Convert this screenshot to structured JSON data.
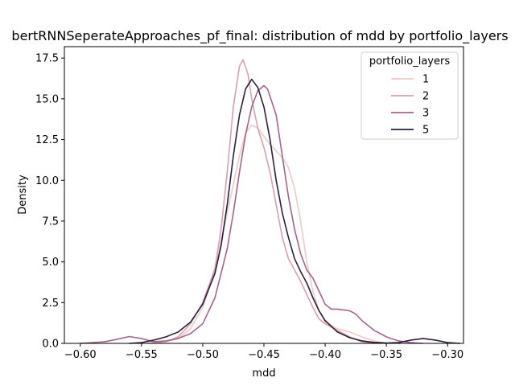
{
  "chart_data": {
    "type": "line",
    "title": "bertRNNSeperateApproaches_pf_final: distribution of mdd by portfolio_layers",
    "xlabel": "mdd",
    "ylabel": "Density",
    "xlim": [
      -0.613,
      -0.287
    ],
    "ylim": [
      0,
      18.2
    ],
    "xticks": [
      -0.6,
      -0.55,
      -0.5,
      -0.45,
      -0.4,
      -0.35,
      -0.3
    ],
    "xtick_labels": [
      "−0.60",
      "−0.55",
      "−0.50",
      "−0.45",
      "−0.40",
      "−0.35",
      "−0.30"
    ],
    "yticks": [
      0.0,
      2.5,
      5.0,
      7.5,
      10.0,
      12.5,
      15.0,
      17.5
    ],
    "ytick_labels": [
      "0.0",
      "2.5",
      "5.0",
      "7.5",
      "10.0",
      "12.5",
      "15.0",
      "17.5"
    ],
    "grid": false,
    "legend": {
      "title": "portfolio_layers",
      "placement": "top-right"
    },
    "series": [
      {
        "name": "1",
        "color": "#efcac4",
        "points": [
          [
            -0.545,
            0.0
          ],
          [
            -0.53,
            0.1
          ],
          [
            -0.52,
            0.3
          ],
          [
            -0.51,
            0.9
          ],
          [
            -0.5,
            2.2
          ],
          [
            -0.49,
            4.5
          ],
          [
            -0.48,
            8.0
          ],
          [
            -0.47,
            11.5
          ],
          [
            -0.465,
            12.9
          ],
          [
            -0.46,
            13.4
          ],
          [
            -0.455,
            13.2
          ],
          [
            -0.45,
            12.7
          ],
          [
            -0.445,
            12.2
          ],
          [
            -0.44,
            11.8
          ],
          [
            -0.435,
            11.4
          ],
          [
            -0.43,
            10.8
          ],
          [
            -0.425,
            9.5
          ],
          [
            -0.42,
            7.5
          ],
          [
            -0.415,
            5.0
          ],
          [
            -0.41,
            3.2
          ],
          [
            -0.405,
            2.0
          ],
          [
            -0.4,
            1.3
          ],
          [
            -0.39,
            0.9
          ],
          [
            -0.38,
            0.7
          ],
          [
            -0.37,
            0.4
          ],
          [
            -0.36,
            0.15
          ],
          [
            -0.35,
            0.0
          ]
        ]
      },
      {
        "name": "2",
        "color": "#d89fad",
        "points": [
          [
            -0.545,
            0.0
          ],
          [
            -0.53,
            0.1
          ],
          [
            -0.52,
            0.4
          ],
          [
            -0.51,
            1.2
          ],
          [
            -0.5,
            2.5
          ],
          [
            -0.49,
            4.6
          ],
          [
            -0.485,
            7.0
          ],
          [
            -0.48,
            10.5
          ],
          [
            -0.475,
            14.5
          ],
          [
            -0.47,
            17.0
          ],
          [
            -0.467,
            17.4
          ],
          [
            -0.463,
            16.5
          ],
          [
            -0.46,
            15.0
          ],
          [
            -0.455,
            13.2
          ],
          [
            -0.45,
            12.0
          ],
          [
            -0.445,
            10.5
          ],
          [
            -0.44,
            8.5
          ],
          [
            -0.435,
            6.5
          ],
          [
            -0.43,
            5.2
          ],
          [
            -0.425,
            4.5
          ],
          [
            -0.42,
            3.8
          ],
          [
            -0.415,
            3.0
          ],
          [
            -0.41,
            2.2
          ],
          [
            -0.405,
            1.5
          ],
          [
            -0.4,
            1.2
          ],
          [
            -0.39,
            0.8
          ],
          [
            -0.38,
            0.4
          ],
          [
            -0.37,
            0.1
          ],
          [
            -0.36,
            0.0
          ]
        ]
      },
      {
        "name": "3",
        "color": "#a8628c",
        "points": [
          [
            -0.6,
            0.0
          ],
          [
            -0.58,
            0.1
          ],
          [
            -0.57,
            0.25
          ],
          [
            -0.56,
            0.42
          ],
          [
            -0.55,
            0.3
          ],
          [
            -0.54,
            0.1
          ],
          [
            -0.53,
            0.15
          ],
          [
            -0.52,
            0.3
          ],
          [
            -0.51,
            0.6
          ],
          [
            -0.5,
            1.2
          ],
          [
            -0.49,
            2.8
          ],
          [
            -0.48,
            5.8
          ],
          [
            -0.475,
            8.0
          ],
          [
            -0.47,
            10.5
          ],
          [
            -0.465,
            12.8
          ],
          [
            -0.46,
            14.5
          ],
          [
            -0.455,
            15.5
          ],
          [
            -0.45,
            15.8
          ],
          [
            -0.447,
            15.6
          ],
          [
            -0.44,
            14.0
          ],
          [
            -0.435,
            11.5
          ],
          [
            -0.43,
            9.0
          ],
          [
            -0.425,
            7.0
          ],
          [
            -0.42,
            5.5
          ],
          [
            -0.415,
            4.5
          ],
          [
            -0.41,
            4.0
          ],
          [
            -0.405,
            3.2
          ],
          [
            -0.4,
            2.4
          ],
          [
            -0.395,
            2.1
          ],
          [
            -0.39,
            2.1
          ],
          [
            -0.38,
            2.0
          ],
          [
            -0.375,
            1.8
          ],
          [
            -0.37,
            1.4
          ],
          [
            -0.36,
            0.8
          ],
          [
            -0.35,
            0.4
          ],
          [
            -0.34,
            0.15
          ],
          [
            -0.33,
            0.05
          ],
          [
            -0.32,
            0.0
          ]
        ]
      },
      {
        "name": "5",
        "color": "#2d1e3e",
        "points": [
          [
            -0.56,
            0.0
          ],
          [
            -0.55,
            0.05
          ],
          [
            -0.54,
            0.2
          ],
          [
            -0.53,
            0.4
          ],
          [
            -0.52,
            0.7
          ],
          [
            -0.51,
            1.3
          ],
          [
            -0.5,
            2.4
          ],
          [
            -0.49,
            4.3
          ],
          [
            -0.485,
            6.0
          ],
          [
            -0.48,
            8.5
          ],
          [
            -0.475,
            11.5
          ],
          [
            -0.47,
            14.0
          ],
          [
            -0.465,
            15.6
          ],
          [
            -0.46,
            16.2
          ],
          [
            -0.455,
            15.7
          ],
          [
            -0.45,
            14.5
          ],
          [
            -0.445,
            12.5
          ],
          [
            -0.44,
            10.0
          ],
          [
            -0.435,
            8.0
          ],
          [
            -0.43,
            6.5
          ],
          [
            -0.425,
            5.2
          ],
          [
            -0.42,
            4.4
          ],
          [
            -0.415,
            3.7
          ],
          [
            -0.41,
            2.8
          ],
          [
            -0.405,
            2.0
          ],
          [
            -0.4,
            1.4
          ],
          [
            -0.39,
            0.7
          ],
          [
            -0.38,
            0.35
          ],
          [
            -0.37,
            0.15
          ],
          [
            -0.36,
            0.06
          ],
          [
            -0.35,
            0.02
          ],
          [
            -0.34,
            0.05
          ],
          [
            -0.33,
            0.2
          ],
          [
            -0.32,
            0.3
          ],
          [
            -0.31,
            0.2
          ],
          [
            -0.3,
            0.05
          ],
          [
            -0.29,
            0.0
          ]
        ]
      }
    ]
  }
}
